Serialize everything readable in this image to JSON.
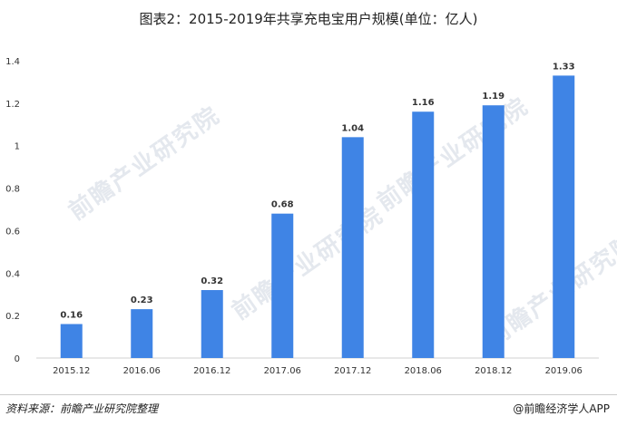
{
  "title": "图表2：2015-2019年共享充电宝用户规模(单位：亿人)",
  "watermark": "前瞻产业研究院",
  "footer": {
    "source": "资料来源：前瞻产业研究院整理",
    "brand": "@前瞻经济学人APP"
  },
  "colors": {
    "bar": "#3f84e5",
    "axis": "#d0d0d0",
    "text": "#333333"
  },
  "chart_data": {
    "type": "bar",
    "title": "图表2：2015-2019年共享充电宝用户规模(单位：亿人)",
    "categories": [
      "2015.12",
      "2016.06",
      "2016.12",
      "2017.06",
      "2017.12",
      "2018.06",
      "2018.12",
      "2019.06"
    ],
    "values": [
      0.16,
      0.23,
      0.32,
      0.68,
      1.04,
      1.16,
      1.19,
      1.33
    ],
    "value_labels": [
      "0.16",
      "0.23",
      "0.32",
      "0.68",
      "1.04",
      "1.16",
      "1.19",
      "1.33"
    ],
    "yticks": [
      "0",
      "0.2",
      "0.4",
      "0.6",
      "0.8",
      "1",
      "1.2",
      "1.4"
    ],
    "ylim": [
      0,
      1.4
    ],
    "xlabel": "",
    "ylabel": "",
    "grid": false,
    "legend": "none"
  }
}
